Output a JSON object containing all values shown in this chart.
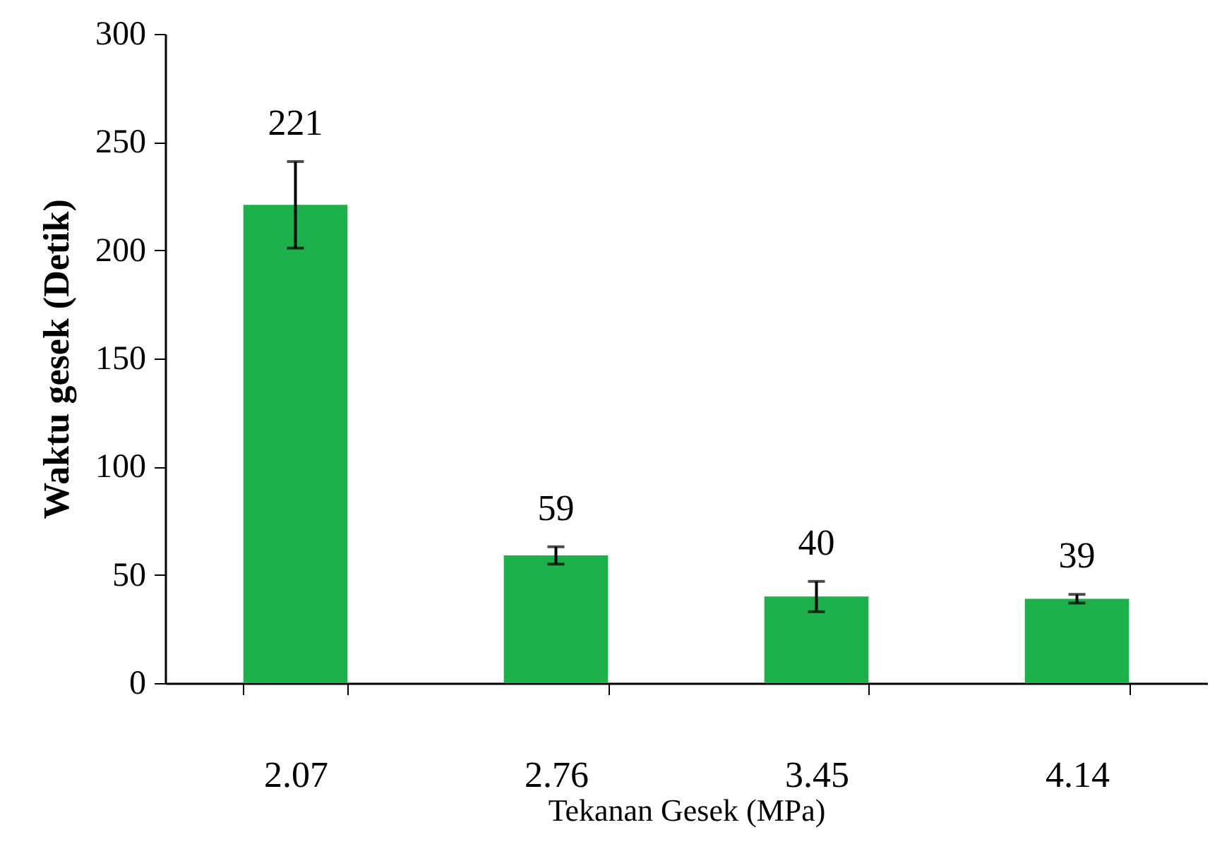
{
  "chart_data": {
    "type": "bar",
    "xlabel": "Tekanan Gesek (MPa)",
    "ylabel": "Waktu gesek   (Detik)",
    "categories": [
      "2.07",
      "2.76",
      "3.45",
      "4.14"
    ],
    "values": [
      221,
      59,
      40,
      39
    ],
    "errors": [
      20,
      4,
      7,
      2
    ],
    "color": "#1db14b",
    "data_labels": true,
    "ylim": [
      0,
      300
    ],
    "yticks": [
      0,
      50,
      100,
      150,
      200,
      250,
      300
    ],
    "grid": false
  }
}
